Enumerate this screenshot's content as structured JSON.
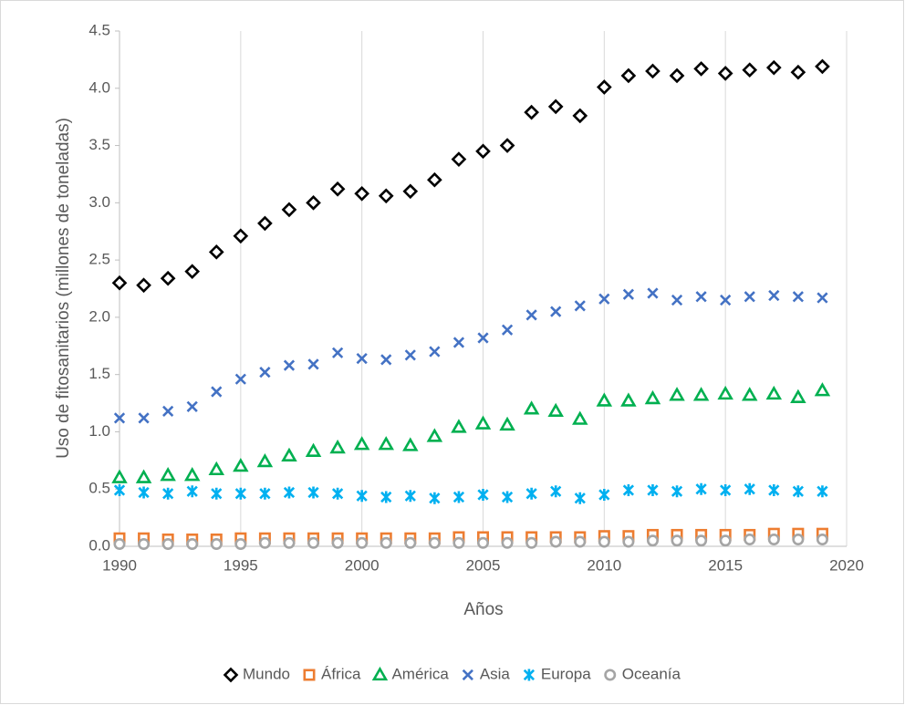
{
  "chart_data": {
    "type": "scatter",
    "x_label": "Años",
    "y_label": "Uso de fitosanitarios (millones de toneladas)",
    "x": [
      1990,
      1991,
      1992,
      1993,
      1994,
      1995,
      1996,
      1997,
      1998,
      1999,
      2000,
      2001,
      2002,
      2003,
      2004,
      2005,
      2006,
      2007,
      2008,
      2009,
      2010,
      2011,
      2012,
      2013,
      2014,
      2015,
      2016,
      2017,
      2018,
      2019
    ],
    "series": [
      {
        "name": "Mundo",
        "color": "#000000",
        "marker": "diamond",
        "values": [
          2.3,
          2.28,
          2.34,
          2.4,
          2.57,
          2.71,
          2.82,
          2.94,
          3.0,
          3.12,
          3.08,
          3.06,
          3.1,
          3.2,
          3.38,
          3.45,
          3.5,
          3.79,
          3.84,
          3.76,
          4.01,
          4.11,
          4.15,
          4.11,
          4.17,
          4.13,
          4.16,
          4.18,
          4.14,
          4.19
        ]
      },
      {
        "name": "África",
        "color": "#ed7d31",
        "marker": "square",
        "values": [
          0.07,
          0.07,
          0.06,
          0.06,
          0.06,
          0.07,
          0.07,
          0.07,
          0.07,
          0.07,
          0.07,
          0.07,
          0.07,
          0.07,
          0.08,
          0.08,
          0.08,
          0.08,
          0.08,
          0.08,
          0.09,
          0.09,
          0.1,
          0.1,
          0.1,
          0.1,
          0.1,
          0.11,
          0.11,
          0.11
        ]
      },
      {
        "name": "América",
        "color": "#00b050",
        "marker": "triangle",
        "values": [
          0.6,
          0.6,
          0.62,
          0.62,
          0.67,
          0.7,
          0.74,
          0.79,
          0.83,
          0.86,
          0.89,
          0.89,
          0.88,
          0.96,
          1.04,
          1.07,
          1.06,
          1.2,
          1.18,
          1.11,
          1.27,
          1.27,
          1.29,
          1.32,
          1.32,
          1.33,
          1.32,
          1.33,
          1.3,
          1.36
        ]
      },
      {
        "name": "Asia",
        "color": "#4472c4",
        "marker": "x",
        "values": [
          1.12,
          1.12,
          1.18,
          1.22,
          1.35,
          1.46,
          1.52,
          1.58,
          1.59,
          1.69,
          1.64,
          1.63,
          1.67,
          1.7,
          1.78,
          1.82,
          1.89,
          2.02,
          2.05,
          2.1,
          2.16,
          2.2,
          2.21,
          2.15,
          2.18,
          2.15,
          2.18,
          2.19,
          2.18,
          2.17
        ]
      },
      {
        "name": "Europa",
        "color": "#00b0f0",
        "marker": "asterisk",
        "values": [
          0.49,
          0.47,
          0.46,
          0.48,
          0.46,
          0.46,
          0.46,
          0.47,
          0.47,
          0.46,
          0.44,
          0.43,
          0.44,
          0.42,
          0.43,
          0.45,
          0.43,
          0.46,
          0.48,
          0.42,
          0.45,
          0.49,
          0.49,
          0.48,
          0.5,
          0.49,
          0.5,
          0.49,
          0.48,
          0.48
        ]
      },
      {
        "name": "Oceanía",
        "color": "#a5a5a5",
        "marker": "circle",
        "values": [
          0.02,
          0.02,
          0.02,
          0.02,
          0.02,
          0.02,
          0.03,
          0.03,
          0.03,
          0.03,
          0.03,
          0.03,
          0.03,
          0.03,
          0.03,
          0.03,
          0.03,
          0.03,
          0.04,
          0.04,
          0.04,
          0.04,
          0.05,
          0.05,
          0.05,
          0.05,
          0.06,
          0.06,
          0.06,
          0.06
        ]
      }
    ],
    "xlim": [
      1990,
      2020
    ],
    "xticks": [
      1990,
      1995,
      2000,
      2005,
      2010,
      2015,
      2020
    ],
    "ylim": [
      0,
      4.5
    ],
    "yticks": [
      {
        "value": 0,
        "label": "0.0"
      },
      0.5,
      {
        "value": 1,
        "label": "1.0"
      },
      1.5,
      {
        "value": 2,
        "label": "2.0"
      },
      2.5,
      {
        "value": 3,
        "label": "3.0"
      },
      3.5,
      {
        "value": 4,
        "label": "4.0"
      },
      4.5
    ],
    "grid": "x",
    "legend": "bottom"
  }
}
